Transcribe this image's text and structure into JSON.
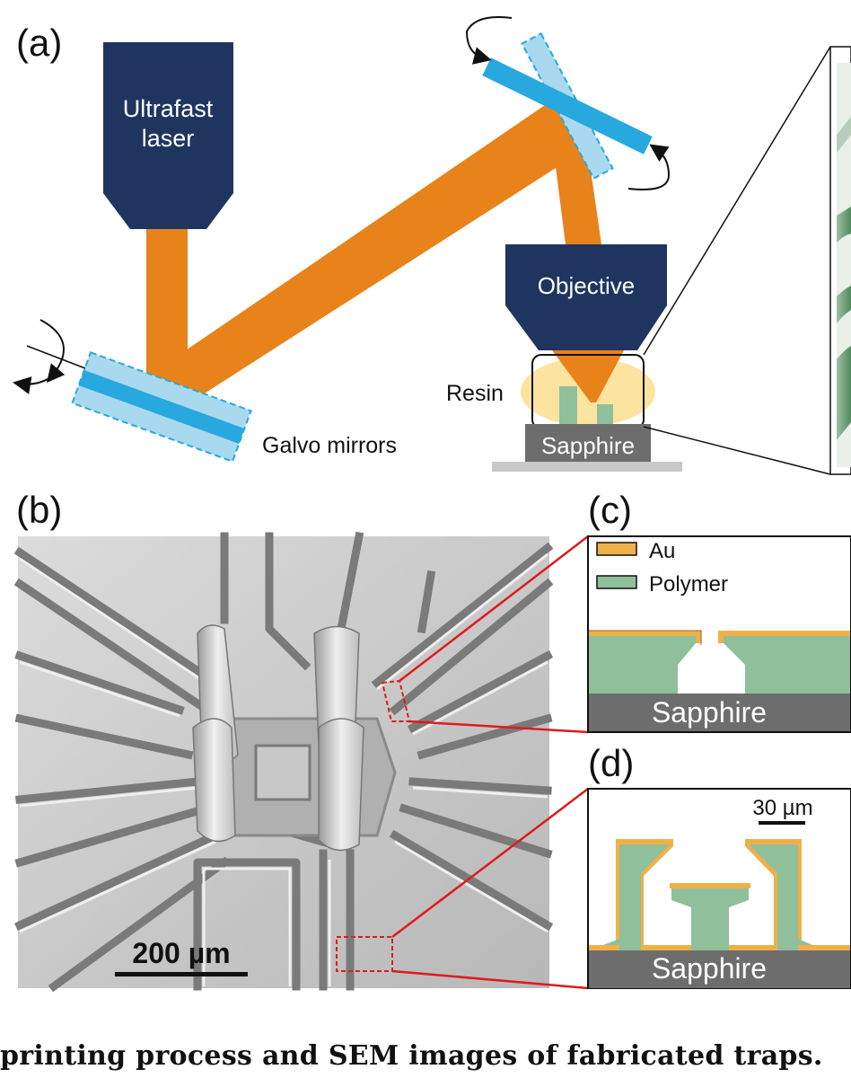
{
  "panels": {
    "a": {
      "label": "(a)",
      "laser_label_line1": "Ultrafast",
      "laser_label_line2": "laser",
      "objective_label": "Objective",
      "resin_label": "Resin",
      "galvo_label": "Galvo mirrors",
      "substrate_label": "Sapphire"
    },
    "b": {
      "label": "(b)",
      "scale_bar_label": "200 µm"
    },
    "c": {
      "label": "(c)",
      "legend": [
        {
          "name": "Au",
          "color": "#f0b048"
        },
        {
          "name": "Polymer",
          "color": "#8fbf9b"
        }
      ],
      "substrate_label": "Sapphire"
    },
    "d": {
      "label": "(d)",
      "scale_bar_label": "30 µm",
      "substrate_label": "Sapphire"
    }
  },
  "colors": {
    "laser_navy": "#1f3560",
    "beam_orange": "#e8821a",
    "mirror_blue": "#27a8de",
    "mirror_light": "#a9d9ef",
    "resin_yellow": "#fbe3a0",
    "sapphire_gray": "#6d6d6d",
    "callout_red": "#e01a1a"
  },
  "caption": "printing process and SEM images of fabricated traps."
}
